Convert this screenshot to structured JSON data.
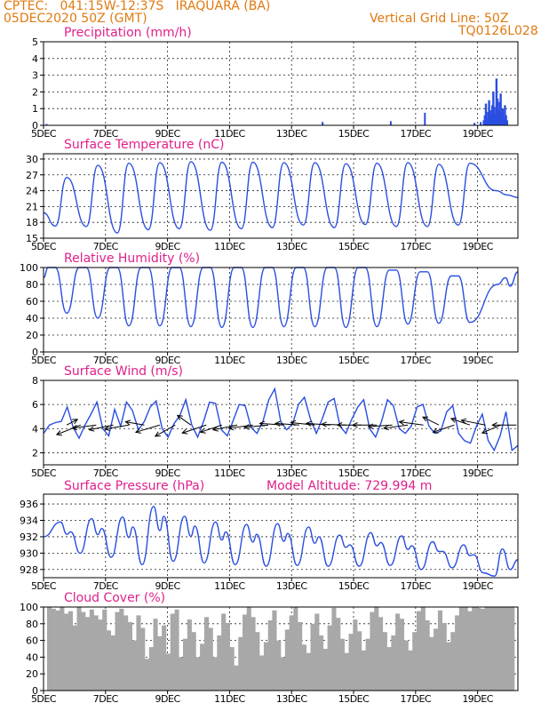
{
  "header": {
    "line1": "CPTEC:   041:15W-12:37S   IRAQUARA (BA)",
    "line2": "05DEC2020 50Z (GMT)",
    "grid_note": "Vertical Grid Line: 50Z",
    "code": "TQ0126L028"
  },
  "model_altitude": "Model Altitude: 729.994 m",
  "colors": {
    "header": "#e07a10",
    "title": "#e0208a",
    "line": "#2a4ee0",
    "cloud": "#a8a8a8"
  },
  "chart_data": [
    {
      "id": "precip",
      "type": "bar",
      "title": "Precipitation (mm/h)",
      "xlabel": "",
      "ylabel": "",
      "x_ticks": [
        "5DEC",
        "7DEC",
        "9DEC",
        "11DEC",
        "13DEC",
        "15DEC",
        "17DEC",
        "19DEC"
      ],
      "y_ticks": [
        0,
        1,
        2,
        3,
        4,
        5
      ],
      "ylim": [
        0,
        5
      ],
      "grid": true,
      "events": [
        {
          "day": 5.1,
          "value": 0.08
        },
        {
          "day": 14.0,
          "value": 0.2
        },
        {
          "day": 16.2,
          "value": 0.25
        },
        {
          "day": 17.3,
          "value": 0.75
        },
        {
          "day": 18.9,
          "value": 0.15
        },
        {
          "day": 19.1,
          "value": 0.2
        }
      ],
      "cluster": {
        "start_day": 19.2,
        "end_day": 19.95,
        "values": [
          0.3,
          0.6,
          1.3,
          0.4,
          0.8,
          1.5,
          0.9,
          0.6,
          1.2,
          2.0,
          1.1,
          0.7,
          2.8,
          1.6,
          0.9,
          1.4,
          1.9,
          0.8,
          1.0,
          0.5,
          1.2,
          0.6,
          0.3
        ]
      }
    },
    {
      "id": "temp",
      "type": "line",
      "title": "Surface Temperature (nC)",
      "y_ticks": [
        15,
        18,
        21,
        24,
        27,
        30
      ],
      "ylim": [
        15,
        31
      ],
      "grid": true,
      "daily_max": [
        26.5,
        28.8,
        29.2,
        29.3,
        29.5,
        29.4,
        29.4,
        29.3,
        29.3,
        29.1,
        29.2,
        29.3,
        29.0,
        29.2
      ],
      "daily_min": [
        17.3,
        17.2,
        16.0,
        16.6,
        16.8,
        16.5,
        16.8,
        17.0,
        17.5,
        17.0,
        17.6,
        17.2,
        17.2,
        17.5
      ],
      "tail": {
        "value_at_19_6": 24.0,
        "end_value": 22.7
      }
    },
    {
      "id": "rh",
      "type": "line",
      "title": "Relative Humidity (%)",
      "y_ticks": [
        0,
        20,
        40,
        60,
        80,
        100
      ],
      "ylim": [
        0,
        100
      ],
      "grid": true,
      "daily_max": [
        100,
        100,
        100,
        100,
        100,
        100,
        100,
        100,
        100,
        100,
        100,
        97,
        95,
        90
      ],
      "daily_min": [
        46,
        40,
        31,
        31,
        30,
        29,
        29,
        30,
        30,
        29,
        30,
        33,
        34,
        35
      ],
      "tail_end_value": 95
    },
    {
      "id": "wind",
      "type": "line",
      "title": "Surface Wind (m/s)",
      "y_ticks": [
        2,
        4,
        6,
        8
      ],
      "ylim": [
        1,
        8
      ],
      "grid": true,
      "speed": [
        3.6,
        4.3,
        4.5,
        4.6,
        5.8,
        4.1,
        3.2,
        4.3,
        5.2,
        6.2,
        4.0,
        3.4,
        5.6,
        4.2,
        6.2,
        5.5,
        3.9,
        4.6,
        5.8,
        6.3,
        4.0,
        3.3,
        4.4,
        5.1,
        6.4,
        4.3,
        3.3,
        4.6,
        6.2,
        6.1,
        3.9,
        3.4,
        4.7,
        6.0,
        5.9,
        4.1,
        3.6,
        4.6,
        6.4,
        7.3,
        4.6,
        3.9,
        4.4,
        6.0,
        6.6,
        4.8,
        3.6,
        4.8,
        6.2,
        6.5,
        4.2,
        3.6,
        4.8,
        5.8,
        6.4,
        4.0,
        3.3,
        4.6,
        6.4,
        5.9,
        4.0,
        3.6,
        4.2,
        5.8,
        6.0,
        4.2,
        3.6,
        3.8,
        5.4,
        5.9,
        3.6,
        3.0,
        2.8,
        4.2,
        5.2,
        3.0,
        2.2,
        3.4,
        5.4,
        2.2,
        2.6
      ],
      "vectors": [
        {
          "day": 5.75,
          "dx": 0.4,
          "dy": 0.35
        },
        {
          "day": 6.2,
          "dx": -0.9,
          "dy": -0.6
        },
        {
          "day": 6.7,
          "dx": -0.9,
          "dy": -0.2
        },
        {
          "day": 7.25,
          "dx": -0.9,
          "dy": -0.3
        },
        {
          "day": 7.75,
          "dx": -0.9,
          "dy": -0.25
        },
        {
          "day": 8.25,
          "dx": -0.7,
          "dy": 0.2
        },
        {
          "day": 8.75,
          "dx": -0.9,
          "dy": -0.45
        },
        {
          "day": 9.25,
          "dx": -0.75,
          "dy": -0.7
        },
        {
          "day": 9.75,
          "dx": -0.5,
          "dy": 0.6
        },
        {
          "day": 10.25,
          "dx": -0.9,
          "dy": -0.5
        },
        {
          "day": 10.75,
          "dx": -0.8,
          "dy": -0.45
        },
        {
          "day": 11.25,
          "dx": -0.9,
          "dy": -0.3
        },
        {
          "day": 11.75,
          "dx": -0.9,
          "dy": -0.2
        },
        {
          "day": 12.25,
          "dx": -0.9,
          "dy": -0.15
        },
        {
          "day": 12.75,
          "dx": -0.9,
          "dy": 0.1
        },
        {
          "day": 13.25,
          "dx": -0.9,
          "dy": 0.1
        },
        {
          "day": 13.75,
          "dx": -0.9,
          "dy": 0.15
        },
        {
          "day": 14.25,
          "dx": -0.9,
          "dy": 0.1
        },
        {
          "day": 14.75,
          "dx": -0.9,
          "dy": 0.05
        },
        {
          "day": 15.25,
          "dx": -0.9,
          "dy": 0.0
        },
        {
          "day": 15.75,
          "dx": -0.9,
          "dy": 0.0
        },
        {
          "day": 16.25,
          "dx": -0.9,
          "dy": -0.1
        },
        {
          "day": 16.75,
          "dx": -0.9,
          "dy": -0.2
        },
        {
          "day": 17.25,
          "dx": -0.9,
          "dy": 0.2
        },
        {
          "day": 17.75,
          "dx": -0.6,
          "dy": 0.5
        },
        {
          "day": 18.25,
          "dx": -0.8,
          "dy": -0.45
        },
        {
          "day": 18.75,
          "dx": -0.7,
          "dy": 0.4
        },
        {
          "day": 19.25,
          "dx": -0.9,
          "dy": 0.3
        },
        {
          "day": 19.75,
          "dx": -0.7,
          "dy": -0.5
        },
        {
          "day": 20.25,
          "dx": -0.9,
          "dy": 0.0
        }
      ]
    },
    {
      "id": "pres",
      "type": "line",
      "title": "Surface Pressure (hPa)",
      "y_ticks": [
        928,
        930,
        932,
        934,
        936
      ],
      "ylim": [
        927,
        937.2
      ],
      "grid": true,
      "daily_max": [
        933.8,
        934.2,
        934.4,
        935.7,
        934.5,
        933.8,
        933.5,
        933.6,
        933.2,
        932.2,
        932.5,
        932.1,
        931.4,
        931.0
      ],
      "daily_min": [
        930.0,
        929.5,
        928.6,
        929.0,
        928.8,
        928.6,
        928.4,
        928.5,
        928.4,
        928.4,
        928.5,
        928.0,
        928.2,
        927.6
      ],
      "start_value": 932.0,
      "end_value": 929.2
    },
    {
      "id": "cloud",
      "type": "bar",
      "title": "Cloud Cover (%)",
      "y_ticks": [
        0,
        20,
        40,
        60,
        80,
        100
      ],
      "ylim": [
        0,
        100
      ],
      "grid": true,
      "values": [
        100,
        98,
        96,
        100,
        92,
        95,
        78,
        100,
        94,
        88,
        97,
        90,
        85,
        97,
        72,
        66,
        94,
        98,
        90,
        82,
        60,
        90,
        75,
        38,
        52,
        86,
        65,
        78,
        44,
        92,
        97,
        40,
        62,
        85,
        70,
        40,
        56,
        88,
        75,
        40,
        66,
        92,
        81,
        52,
        30,
        64,
        91,
        100,
        88,
        70,
        42,
        58,
        84,
        96,
        60,
        40,
        73,
        90,
        100,
        82,
        55,
        45,
        80,
        92,
        66,
        50,
        78,
        99,
        87,
        62,
        45,
        68,
        85,
        71,
        48,
        62,
        94,
        100,
        88,
        70,
        52,
        66,
        92,
        86,
        60,
        48,
        70,
        95,
        100,
        84,
        64,
        74,
        96,
        81,
        58,
        70,
        90,
        100,
        100,
        95,
        100,
        99,
        98,
        100,
        100,
        100,
        100,
        100,
        100,
        100
      ]
    }
  ]
}
